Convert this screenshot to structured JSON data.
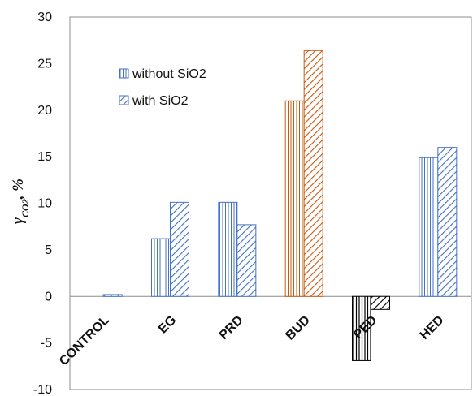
{
  "chart_data": {
    "type": "bar",
    "ylabel_main": "γ",
    "ylabel_sub": "CO2",
    "ylabel_suffix": ", %",
    "ylim": [
      -10,
      30
    ],
    "yticks": [
      -10,
      -5,
      0,
      5,
      10,
      15,
      20,
      25,
      30
    ],
    "grid": false,
    "legend_position": "top-left",
    "categories": [
      "CONTROL",
      "EG",
      "PRD",
      "BUD",
      "PED",
      "HED"
    ],
    "category_colors": [
      "#4472C4",
      "#4472C4",
      "#4472C4",
      "#C55A11",
      "#000000",
      "#4472C4"
    ],
    "series": [
      {
        "name": "without SiO2",
        "pattern": "vertical",
        "values": [
          0,
          6.2,
          10.1,
          21.0,
          -6.9,
          14.9
        ]
      },
      {
        "name": "with SiO2",
        "pattern": "diagonal",
        "values": [
          0.2,
          10.1,
          7.7,
          26.4,
          -1.4,
          16.0
        ]
      }
    ],
    "legend_color": "#4472C4"
  }
}
